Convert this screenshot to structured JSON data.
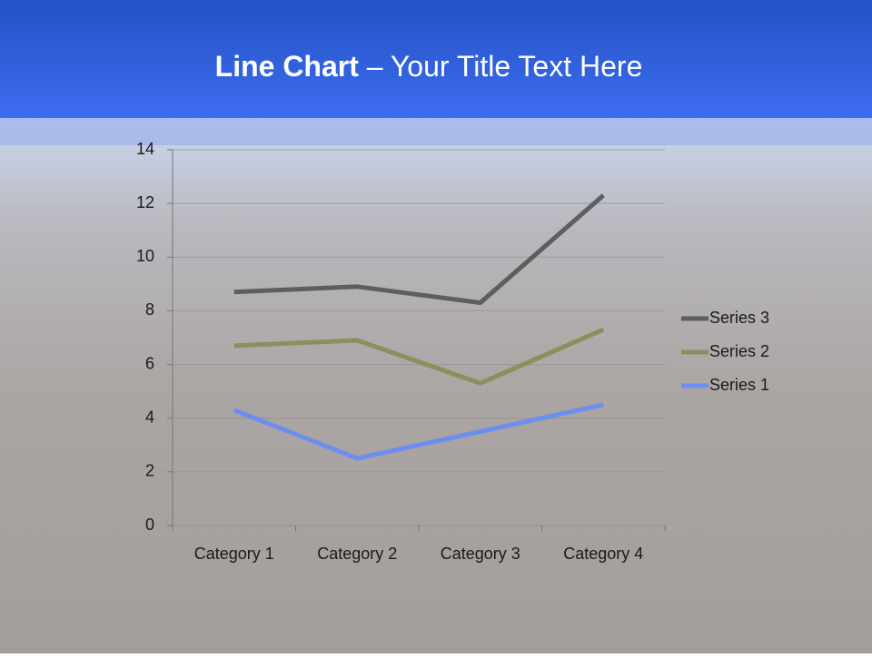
{
  "chart_data": {
    "type": "line",
    "title": [
      "Line Chart",
      " – Your Title Text Here"
    ],
    "categories": [
      "Category 1",
      "Category 2",
      "Category 3",
      "Category 4"
    ],
    "series": [
      {
        "name": "Series 1",
        "color": "#6b8ff0",
        "values": [
          4.3,
          2.5,
          3.5,
          4.5
        ]
      },
      {
        "name": "Series 2",
        "color": "#8e8e5c",
        "values": [
          6.7,
          6.9,
          5.3,
          7.3
        ]
      },
      {
        "name": "Series 3",
        "color": "#5e5e5e",
        "values": [
          8.7,
          8.9,
          8.3,
          12.3
        ]
      }
    ],
    "ylim": [
      0,
      14
    ],
    "yticks": [
      0,
      2,
      4,
      6,
      8,
      10,
      12,
      14
    ],
    "grid": true,
    "legend": "right"
  }
}
